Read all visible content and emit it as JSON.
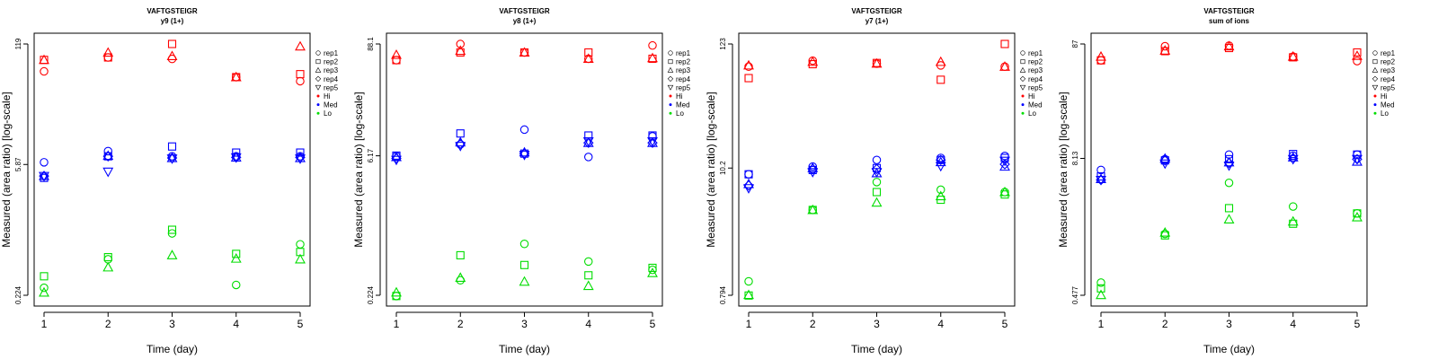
{
  "chart_data": [
    {
      "type": "scatter",
      "title": "VAFTGSTEIGR",
      "subtitle": "y9 (1+)",
      "xlabel": "Time (day)",
      "ylabel": "Measured (area ratio) [log-scale]",
      "x_ticks": [
        "1",
        "2",
        "3",
        "4",
        "5"
      ],
      "y_ticks": [
        "0.224",
        "5.87",
        "119"
      ],
      "y_tick_values": [
        0.224,
        5.87,
        119
      ],
      "ylim": [
        0.224,
        119
      ],
      "y_scale": "log",
      "series": [
        {
          "group": "Hi",
          "rep": "rep1",
          "values": [
            60,
            85,
            82,
            52,
            47
          ]
        },
        {
          "group": "Hi",
          "rep": "rep2",
          "values": [
            80,
            85,
            119,
            52,
            56
          ]
        },
        {
          "group": "Hi",
          "rep": "rep3",
          "values": [
            80,
            96,
            88,
            52,
            112
          ]
        },
        {
          "group": "Med",
          "rep": "rep1",
          "values": [
            6.2,
            8.2,
            7.2,
            7.2,
            7.2
          ]
        },
        {
          "group": "Med",
          "rep": "rep2",
          "values": [
            4.2,
            7.2,
            9.2,
            7.9,
            7.9
          ]
        },
        {
          "group": "Med",
          "rep": "rep3",
          "values": [
            4.4,
            7.3,
            6.9,
            7.0,
            6.9
          ]
        },
        {
          "group": "Med",
          "rep": "rep4",
          "values": [
            4.4,
            7.2,
            6.9,
            7.0,
            7.0
          ]
        },
        {
          "group": "Med",
          "rep": "rep5",
          "values": [
            4.4,
            4.9,
            6.8,
            7.0,
            6.8
          ]
        },
        {
          "group": "Lo",
          "rep": "rep1",
          "values": [
            0.27,
            0.55,
            1.05,
            0.29,
            0.8
          ]
        },
        {
          "group": "Lo",
          "rep": "rep2",
          "values": [
            0.36,
            0.58,
            1.15,
            0.63,
            0.66
          ]
        },
        {
          "group": "Lo",
          "rep": "rep3",
          "values": [
            0.24,
            0.45,
            0.61,
            0.56,
            0.55
          ]
        }
      ]
    },
    {
      "type": "scatter",
      "title": "VAFTGSTEIGR",
      "subtitle": "y8 (1+)",
      "xlabel": "Time (day)",
      "ylabel": "Measured (area ratio) [log-scale]",
      "x_ticks": [
        "1",
        "2",
        "3",
        "4",
        "5"
      ],
      "y_ticks": [
        "0.224",
        "6.17",
        "88.1"
      ],
      "y_tick_values": [
        0.224,
        6.17,
        88.1
      ],
      "ylim": [
        0.224,
        88.1
      ],
      "y_scale": "log",
      "series": [
        {
          "group": "Hi",
          "rep": "rep1",
          "values": [
            60,
            88,
            72,
            62,
            85
          ]
        },
        {
          "group": "Hi",
          "rep": "rep2",
          "values": [
            60,
            72,
            72,
            72,
            62
          ]
        },
        {
          "group": "Hi",
          "rep": "rep3",
          "values": [
            68,
            75,
            72,
            62,
            63
          ]
        },
        {
          "group": "Med",
          "rep": "rep1",
          "values": [
            6.1,
            8.1,
            11.5,
            6.0,
            9.8
          ]
        },
        {
          "group": "Med",
          "rep": "rep2",
          "values": [
            6.2,
            10.5,
            6.5,
            10.0,
            10.0
          ]
        },
        {
          "group": "Med",
          "rep": "rep3",
          "values": [
            6.0,
            8.5,
            6.7,
            8.4,
            8.4
          ]
        },
        {
          "group": "Med",
          "rep": "rep4",
          "values": [
            5.8,
            8.2,
            6.5,
            8.4,
            8.4
          ]
        },
        {
          "group": "Med",
          "rep": "rep5",
          "values": [
            5.6,
            7.8,
            6.3,
            8.7,
            8.7
          ]
        },
        {
          "group": "Lo",
          "rep": "rep1",
          "values": [
            0.22,
            0.32,
            0.76,
            0.5,
            0.41
          ]
        },
        {
          "group": "Lo",
          "rep": "rep2",
          "values": [
            0.22,
            0.58,
            0.46,
            0.36,
            0.43
          ]
        },
        {
          "group": "Lo",
          "rep": "rep3",
          "values": [
            0.24,
            0.34,
            0.31,
            0.28,
            0.38
          ]
        }
      ]
    },
    {
      "type": "scatter",
      "title": "VAFTGSTEIGR",
      "subtitle": "y7 (1+)",
      "xlabel": "Time (day)",
      "ylabel": "Measured (area ratio) [log-scale]",
      "x_ticks": [
        "1",
        "2",
        "3",
        "4",
        "5"
      ],
      "y_ticks": [
        "0.794",
        "10.2",
        "123"
      ],
      "y_tick_values": [
        0.794,
        10.2,
        123
      ],
      "ylim": [
        0.794,
        123
      ],
      "y_scale": "log",
      "series": [
        {
          "group": "Hi",
          "rep": "rep1",
          "values": [
            78,
            88,
            83,
            80,
            78
          ]
        },
        {
          "group": "Hi",
          "rep": "rep2",
          "values": [
            62,
            82,
            84,
            60,
            123
          ]
        },
        {
          "group": "Hi",
          "rep": "rep3",
          "values": [
            80,
            86,
            83,
            86,
            78
          ]
        },
        {
          "group": "Med",
          "rep": "rep1",
          "values": [
            9.0,
            10.5,
            12.0,
            12.5,
            13.0
          ]
        },
        {
          "group": "Med",
          "rep": "rep2",
          "values": [
            9.0,
            9.8,
            10.2,
            12.0,
            12.5
          ]
        },
        {
          "group": "Med",
          "rep": "rep3",
          "values": [
            7.4,
            10.2,
            9.2,
            11.5,
            10.5
          ]
        },
        {
          "group": "Med",
          "rep": "rep4",
          "values": [
            7.2,
            10.0,
            10.0,
            12.0,
            11.0
          ]
        },
        {
          "group": "Med",
          "rep": "rep5",
          "values": [
            6.8,
            9.4,
            9.4,
            10.6,
            11.8
          ]
        },
        {
          "group": "Lo",
          "rep": "rep1",
          "values": [
            1.05,
            4.4,
            7.7,
            6.6,
            6.3
          ]
        },
        {
          "group": "Lo",
          "rep": "rep2",
          "values": [
            0.79,
            4.4,
            6.3,
            5.4,
            6.0
          ]
        },
        {
          "group": "Lo",
          "rep": "rep3",
          "values": [
            0.8,
            4.4,
            5.1,
            5.8,
            6.3
          ]
        }
      ]
    },
    {
      "type": "scatter",
      "title": "VAFTGSTEIGR",
      "subtitle": "sum of ions",
      "xlabel": "Time (day)",
      "ylabel": "Measured (area ratio) [log-scale]",
      "x_ticks": [
        "1",
        "2",
        "3",
        "4",
        "5"
      ],
      "y_ticks": [
        "0.477",
        "8.13",
        "87"
      ],
      "y_tick_values": [
        0.477,
        8.13,
        87
      ],
      "ylim": [
        0.477,
        87
      ],
      "y_scale": "log",
      "series": [
        {
          "group": "Hi",
          "rep": "rep1",
          "values": [
            62,
            83,
            84,
            67,
            61
          ]
        },
        {
          "group": "Hi",
          "rep": "rep2",
          "values": [
            62,
            75,
            80,
            66,
            73
          ]
        },
        {
          "group": "Hi",
          "rep": "rep3",
          "values": [
            67,
            76,
            83,
            67,
            68
          ]
        },
        {
          "group": "Med",
          "rep": "rep1",
          "values": [
            6.4,
            8.0,
            8.8,
            8.6,
            8.8
          ]
        },
        {
          "group": "Med",
          "rep": "rep2",
          "values": [
            5.6,
            7.8,
            8.0,
            8.9,
            8.8
          ]
        },
        {
          "group": "Med",
          "rep": "rep3",
          "values": [
            5.3,
            8.1,
            7.5,
            8.3,
            7.6
          ]
        },
        {
          "group": "Med",
          "rep": "rep4",
          "values": [
            5.2,
            7.8,
            7.4,
            8.1,
            8.0
          ]
        },
        {
          "group": "Med",
          "rep": "rep5",
          "values": [
            5.2,
            7.3,
            7.0,
            8.0,
            8.0
          ]
        },
        {
          "group": "Lo",
          "rep": "rep1",
          "values": [
            0.62,
            1.7,
            4.9,
            3.0,
            2.6
          ]
        },
        {
          "group": "Lo",
          "rep": "rep2",
          "values": [
            0.55,
            1.65,
            2.9,
            2.1,
            2.6
          ]
        },
        {
          "group": "Lo",
          "rep": "rep3",
          "values": [
            0.48,
            1.75,
            2.3,
            2.2,
            2.4
          ]
        }
      ]
    }
  ],
  "legend": {
    "placement": "right",
    "entries": [
      {
        "label": "rep1",
        "marker": "circle"
      },
      {
        "label": "rep2",
        "marker": "square"
      },
      {
        "label": "rep3",
        "marker": "triangle-up"
      },
      {
        "label": "rep4",
        "marker": "diamond"
      },
      {
        "label": "rep5",
        "marker": "triangle-down"
      },
      {
        "label": "Hi",
        "marker": "dot",
        "color": "#ff0000"
      },
      {
        "label": "Med",
        "marker": "dot",
        "color": "#0000ff"
      },
      {
        "label": "Lo",
        "marker": "dot",
        "color": "#00dd00"
      }
    ]
  },
  "colors": {
    "Hi": "#ff0000",
    "Med": "#0000ff",
    "Lo": "#00dd00"
  },
  "markers": {
    "rep1": "circle",
    "rep2": "square",
    "rep3": "triangle-up",
    "rep4": "diamond",
    "rep5": "triangle-down"
  }
}
